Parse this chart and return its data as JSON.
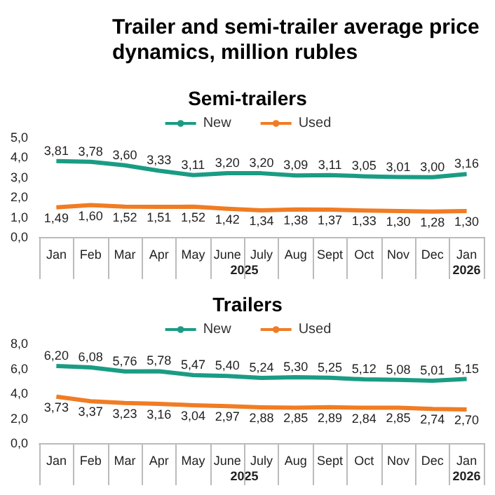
{
  "chart_data": [
    {
      "type": "other",
      "title": "Trailer and semi-trailer average price dynamics, million rubles"
    },
    {
      "type": "line",
      "title": "Semi-trailers",
      "categories": [
        "Jan",
        "Feb",
        "Mar",
        "Apr",
        "May",
        "June",
        "July",
        "Aug",
        "Sept",
        "Oct",
        "Nov",
        "Dec",
        "Jan"
      ],
      "annotations": [
        "2025",
        "2026"
      ],
      "legend": "top",
      "marker": "none",
      "ylim": [
        0,
        5
      ],
      "yticks": [
        {
          "value": 0,
          "label": "0,0"
        },
        {
          "value": 1,
          "label": "1,0"
        },
        {
          "value": 2,
          "label": "2,0"
        },
        {
          "value": 3,
          "label": "3,0"
        },
        {
          "value": 4,
          "label": "4,0"
        },
        {
          "value": 5,
          "label": "5,0"
        }
      ],
      "series": [
        {
          "name": "New",
          "color": "#1a9c84",
          "values": [
            3.81,
            3.78,
            3.6,
            3.33,
            3.11,
            3.2,
            3.2,
            3.09,
            3.11,
            3.05,
            3.01,
            3.0,
            3.16
          ],
          "value_labels": [
            "3,81",
            "3,78",
            "3,60",
            "3,33",
            "3,11",
            "3,20",
            "3,20",
            "3,09",
            "3,11",
            "3,05",
            "3,01",
            "3,00",
            "3,16"
          ]
        },
        {
          "name": "Used",
          "color": "#f07c24",
          "values": [
            1.49,
            1.6,
            1.52,
            1.51,
            1.52,
            1.42,
            1.34,
            1.38,
            1.37,
            1.33,
            1.3,
            1.28,
            1.3
          ],
          "value_labels": [
            "1,49",
            "1,60",
            "1,52",
            "1,51",
            "1,52",
            "1,42",
            "1,34",
            "1,38",
            "1,37",
            "1,33",
            "1,30",
            "1,28",
            "1,30"
          ]
        }
      ]
    },
    {
      "type": "line",
      "title": "Trailers",
      "categories": [
        "Jan",
        "Feb",
        "Mar",
        "Apr",
        "May",
        "June",
        "July",
        "Aug",
        "Sept",
        "Oct",
        "Nov",
        "Dec",
        "Jan"
      ],
      "annotations": [
        "2025",
        "2026"
      ],
      "legend": "top",
      "marker": "none",
      "ylim": [
        0,
        8
      ],
      "yticks": [
        {
          "value": 0,
          "label": "0,0"
        },
        {
          "value": 2,
          "label": "2,0"
        },
        {
          "value": 4,
          "label": "4,0"
        },
        {
          "value": 6,
          "label": "6,0"
        },
        {
          "value": 8,
          "label": "8,0"
        }
      ],
      "series": [
        {
          "name": "New",
          "color": "#1a9c84",
          "values": [
            6.2,
            6.08,
            5.76,
            5.78,
            5.47,
            5.4,
            5.24,
            5.3,
            5.25,
            5.12,
            5.08,
            5.01,
            5.15
          ],
          "value_labels": [
            "6,20",
            "6,08",
            "5,76",
            "5,78",
            "5,47",
            "5,40",
            "5,24",
            "5,30",
            "5,25",
            "5,12",
            "5,08",
            "5,01",
            "5,15"
          ]
        },
        {
          "name": "Used",
          "color": "#f07c24",
          "values": [
            3.73,
            3.37,
            3.23,
            3.16,
            3.04,
            2.97,
            2.88,
            2.85,
            2.89,
            2.84,
            2.85,
            2.74,
            2.7
          ],
          "value_labels": [
            "3,73",
            "3,37",
            "3,23",
            "3,16",
            "3,04",
            "2,97",
            "2,88",
            "2,85",
            "2,89",
            "2,84",
            "2,85",
            "2,74",
            "2,70"
          ]
        }
      ]
    }
  ]
}
